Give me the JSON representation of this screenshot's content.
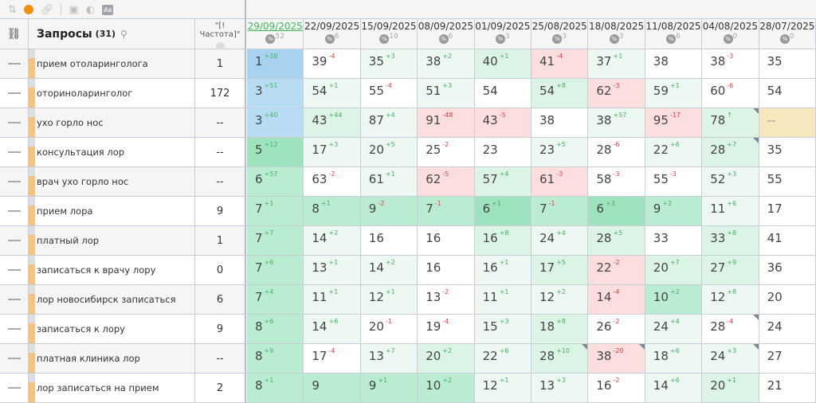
{
  "toolbar": {
    "icons": [
      "sort-icon",
      "status-dot-icon",
      "link-icon",
      "calculator-icon",
      "contrast-icon",
      "font-icon"
    ],
    "font_label": "Aa",
    "status_color": "#f0900e"
  },
  "header": {
    "link_icon": "link-icon",
    "query_title": "Запросы",
    "query_count": "(31)",
    "freq_title": "\"[!Частота]\"",
    "pct_label": "%",
    "dates": [
      {
        "date": "29/09/2025",
        "pct": "52"
      },
      {
        "date": "22/09/2025",
        "pct": "6"
      },
      {
        "date": "15/09/2025",
        "pct": "10"
      },
      {
        "date": "08/09/2025",
        "pct": "6"
      },
      {
        "date": "01/09/2025",
        "pct": "3"
      },
      {
        "date": "25/08/2025",
        "pct": "3"
      },
      {
        "date": "18/08/2025",
        "pct": "3"
      },
      {
        "date": "11/08/2025",
        "pct": "6"
      },
      {
        "date": "04/08/2025",
        "pct": "0"
      },
      {
        "date": "28/07/2025",
        "pct": "0"
      }
    ]
  },
  "rows": [
    {
      "query": "прием отоларинголога",
      "freq": "1",
      "cells": [
        [
          "1",
          "+38",
          "b"
        ],
        [
          "39",
          "-4",
          "w"
        ],
        [
          "35",
          "+3",
          "g0"
        ],
        [
          "38",
          "+2",
          "g0"
        ],
        [
          "40",
          "+1",
          "g1"
        ],
        [
          "41",
          "-4",
          "r"
        ],
        [
          "37",
          "+1",
          "g0"
        ],
        [
          "38",
          "",
          "w"
        ],
        [
          "38",
          "-3",
          "w"
        ],
        [
          "35",
          "",
          "w"
        ]
      ]
    },
    {
      "query": "оториноларинголог",
      "freq": "172",
      "cells": [
        [
          "3",
          "+51",
          "b2"
        ],
        [
          "54",
          "+1",
          "g0"
        ],
        [
          "55",
          "-4",
          "w"
        ],
        [
          "51",
          "+3",
          "g0"
        ],
        [
          "54",
          "",
          "w"
        ],
        [
          "54",
          "+8",
          "g1"
        ],
        [
          "62",
          "-3",
          "r"
        ],
        [
          "59",
          "+1",
          "g0"
        ],
        [
          "60",
          "-6",
          "w"
        ],
        [
          "54",
          "",
          "w"
        ]
      ]
    },
    {
      "query": "ухо горло нос",
      "freq": "--",
      "cells": [
        [
          "3",
          "+40",
          "b2"
        ],
        [
          "43",
          "+44",
          "g1"
        ],
        [
          "87",
          "+4",
          "g0"
        ],
        [
          "91",
          "-48",
          "r"
        ],
        [
          "43",
          "-5",
          "r"
        ],
        [
          "38",
          "",
          "w"
        ],
        [
          "38",
          "+57",
          "g0"
        ],
        [
          "95",
          "-17",
          "r"
        ],
        [
          "78",
          "↑",
          "g1",
          1
        ],
        [
          "--",
          "",
          "y"
        ]
      ]
    },
    {
      "query": "консультация лор",
      "freq": "--",
      "cells": [
        [
          "5",
          "+12",
          "g3"
        ],
        [
          "17",
          "+3",
          "g0"
        ],
        [
          "20",
          "+5",
          "g0"
        ],
        [
          "25",
          "-2",
          "w"
        ],
        [
          "23",
          "",
          "w"
        ],
        [
          "23",
          "+5",
          "g0"
        ],
        [
          "28",
          "-6",
          "w"
        ],
        [
          "22",
          "+6",
          "g0"
        ],
        [
          "28",
          "+7",
          "g1",
          1
        ],
        [
          "35",
          "",
          "w"
        ]
      ]
    },
    {
      "query": "врач ухо горло нос",
      "freq": "--",
      "cells": [
        [
          "6",
          "+57",
          "g2"
        ],
        [
          "63",
          "-2",
          "w"
        ],
        [
          "61",
          "+1",
          "g0"
        ],
        [
          "62",
          "-5",
          "r"
        ],
        [
          "57",
          "+4",
          "g1"
        ],
        [
          "61",
          "-3",
          "r"
        ],
        [
          "58",
          "-3",
          "w"
        ],
        [
          "55",
          "-3",
          "w"
        ],
        [
          "52",
          "+3",
          "g0"
        ],
        [
          "55",
          "",
          "w"
        ]
      ]
    },
    {
      "query": "прием лора",
      "freq": "9",
      "cells": [
        [
          "7",
          "+1",
          "g2"
        ],
        [
          "8",
          "+1",
          "g2"
        ],
        [
          "9",
          "-2",
          "g2"
        ],
        [
          "7",
          "-1",
          "g2"
        ],
        [
          "6",
          "+1",
          "g3"
        ],
        [
          "7",
          "-1",
          "g2"
        ],
        [
          "6",
          "+3",
          "g3"
        ],
        [
          "9",
          "+2",
          "g2"
        ],
        [
          "11",
          "+6",
          "g0"
        ],
        [
          "17",
          "",
          "w"
        ]
      ]
    },
    {
      "query": "платный лор",
      "freq": "1",
      "cells": [
        [
          "7",
          "+7",
          "g2"
        ],
        [
          "14",
          "+2",
          "g0"
        ],
        [
          "16",
          "",
          "w"
        ],
        [
          "16",
          "",
          "w"
        ],
        [
          "16",
          "+8",
          "g1"
        ],
        [
          "24",
          "+4",
          "g0"
        ],
        [
          "28",
          "+5",
          "g1"
        ],
        [
          "33",
          "",
          "w"
        ],
        [
          "33",
          "+8",
          "g1"
        ],
        [
          "41",
          "",
          "w"
        ]
      ]
    },
    {
      "query": "записаться к врачу лору",
      "freq": "0",
      "cells": [
        [
          "7",
          "+6",
          "g2"
        ],
        [
          "13",
          "+1",
          "g0"
        ],
        [
          "14",
          "+2",
          "g0"
        ],
        [
          "16",
          "",
          "w"
        ],
        [
          "16",
          "+1",
          "g0"
        ],
        [
          "17",
          "+5",
          "g1"
        ],
        [
          "22",
          "-2",
          "r"
        ],
        [
          "20",
          "+7",
          "g1"
        ],
        [
          "27",
          "+9",
          "g1"
        ],
        [
          "36",
          "",
          "w"
        ]
      ]
    },
    {
      "query": "лор новосибирск записаться",
      "freq": "6",
      "cells": [
        [
          "7",
          "+4",
          "g2"
        ],
        [
          "11",
          "+1",
          "g0"
        ],
        [
          "12",
          "+1",
          "g0"
        ],
        [
          "13",
          "-2",
          "w"
        ],
        [
          "11",
          "+1",
          "g0"
        ],
        [
          "12",
          "+2",
          "g0"
        ],
        [
          "14",
          "-4",
          "r"
        ],
        [
          "10",
          "+2",
          "g2"
        ],
        [
          "12",
          "+8",
          "g0"
        ],
        [
          "20",
          "",
          "w"
        ]
      ]
    },
    {
      "query": "записаться к лору",
      "freq": "9",
      "cells": [
        [
          "8",
          "+6",
          "g2"
        ],
        [
          "14",
          "+6",
          "g0"
        ],
        [
          "20",
          "-1",
          "w"
        ],
        [
          "19",
          "-4",
          "w"
        ],
        [
          "15",
          "+3",
          "g0"
        ],
        [
          "18",
          "+8",
          "g1"
        ],
        [
          "26",
          "-2",
          "w"
        ],
        [
          "24",
          "+4",
          "g0"
        ],
        [
          "28",
          "-4",
          "w",
          1
        ],
        [
          "24",
          "",
          "w"
        ]
      ]
    },
    {
      "query": "платная клиника лор",
      "freq": "--",
      "cells": [
        [
          "8",
          "+9",
          "g2"
        ],
        [
          "17",
          "-4",
          "w"
        ],
        [
          "13",
          "+7",
          "g0"
        ],
        [
          "20",
          "+2",
          "g1"
        ],
        [
          "22",
          "+6",
          "g0"
        ],
        [
          "28",
          "+10",
          "g1",
          1
        ],
        [
          "38",
          "-20",
          "r",
          1
        ],
        [
          "18",
          "+6",
          "g0"
        ],
        [
          "24",
          "+3",
          "g0",
          1
        ],
        [
          "27",
          "",
          "w"
        ]
      ]
    },
    {
      "query": "лор записаться на прием",
      "freq": "2",
      "cells": [
        [
          "8",
          "+1",
          "g2"
        ],
        [
          "9",
          "",
          "g2"
        ],
        [
          "9",
          "+1",
          "g2"
        ],
        [
          "10",
          "+2",
          "g2"
        ],
        [
          "12",
          "+1",
          "g0"
        ],
        [
          "13",
          "+3",
          "g0"
        ],
        [
          "16",
          "-2",
          "w"
        ],
        [
          "14",
          "+6",
          "g0"
        ],
        [
          "20",
          "+1",
          "g1"
        ],
        [
          "21",
          "",
          "w"
        ]
      ]
    }
  ]
}
